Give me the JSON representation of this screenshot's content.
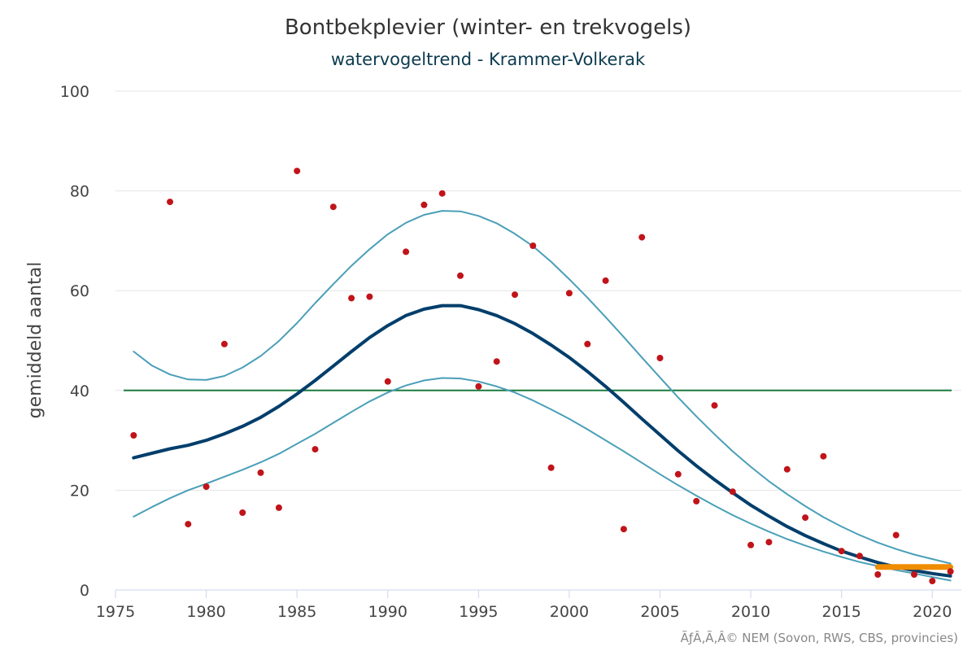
{
  "chart_data": {
    "type": "line",
    "title": "Bontbekplevier (winter- en trekvogels)",
    "subtitle": "watervogeltrend - Krammer-Volkerak",
    "ylabel": "gemiddeld aantal",
    "xlabel": "",
    "xlim": [
      1975,
      2021.6
    ],
    "ylim": [
      0,
      100
    ],
    "x_ticks": [
      1975,
      1980,
      1985,
      1990,
      1995,
      2000,
      2005,
      2010,
      2015,
      2020
    ],
    "y_ticks": [
      0,
      20,
      40,
      60,
      80,
      100
    ],
    "grid": "horizontal",
    "colors": {
      "trend": "#003e6b",
      "band": "#4a9fb8",
      "points": "#c0141a",
      "reference": "#1a7a3c",
      "recent": "#f08c00"
    },
    "reference_line": {
      "y": 40
    },
    "points": {
      "x": [
        1976,
        1978,
        1979,
        1980,
        1981,
        1982,
        1983,
        1984,
        1985,
        1986,
        1987,
        1988,
        1989,
        1990,
        1991,
        1992,
        1993,
        1994,
        1995,
        1996,
        1997,
        1998,
        1999,
        2000,
        2001,
        2002,
        2003,
        2004,
        2005,
        2006,
        2007,
        2008,
        2009,
        2010,
        2011,
        2012,
        2013,
        2014,
        2015,
        2016,
        2017,
        2018,
        2019,
        2020,
        2021
      ],
      "y": [
        31,
        77.8,
        13.2,
        20.7,
        49.3,
        15.5,
        23.5,
        16.5,
        84,
        28.2,
        76.8,
        58.5,
        58.8,
        41.8,
        67.8,
        77.2,
        79.5,
        63,
        40.8,
        45.8,
        59.2,
        69,
        24.5,
        59.5,
        49.3,
        62,
        12.2,
        70.7,
        46.5,
        23.2,
        17.8,
        37,
        19.7,
        9,
        9.6,
        24.2,
        14.5,
        26.8,
        7.8,
        6.8,
        3.1,
        11,
        3.1,
        1.8,
        3.7
      ]
    },
    "series": [
      {
        "role": "trend",
        "x": [
          1976,
          1977,
          1978,
          1979,
          1980,
          1981,
          1982,
          1983,
          1984,
          1985,
          1986,
          1987,
          1988,
          1989,
          1990,
          1991,
          1992,
          1993,
          1994,
          1995,
          1996,
          1997,
          1998,
          1999,
          2000,
          2001,
          2002,
          2003,
          2004,
          2005,
          2006,
          2007,
          2008,
          2009,
          2010,
          2011,
          2012,
          2013,
          2014,
          2015,
          2016,
          2017,
          2018,
          2019,
          2020,
          2021
        ],
        "y": [
          26.5,
          27.4,
          28.3,
          29,
          30,
          31.3,
          32.8,
          34.6,
          36.8,
          39.3,
          42,
          44.9,
          47.8,
          50.6,
          53,
          55,
          56.3,
          57,
          57,
          56.2,
          55,
          53.4,
          51.4,
          49.1,
          46.6,
          43.8,
          40.8,
          37.6,
          34.3,
          31.1,
          27.9,
          24.9,
          22.1,
          19.5,
          17,
          14.8,
          12.7,
          10.9,
          9.3,
          7.8,
          6.6,
          5.5,
          4.6,
          3.9,
          3.3,
          2.8
        ]
      },
      {
        "role": "band-upper",
        "x": [
          1976,
          1977,
          1978,
          1979,
          1980,
          1981,
          1982,
          1983,
          1984,
          1985,
          1986,
          1987,
          1988,
          1989,
          1990,
          1991,
          1992,
          1993,
          1994,
          1995,
          1996,
          1997,
          1998,
          1999,
          2000,
          2001,
          2002,
          2003,
          2004,
          2005,
          2006,
          2007,
          2008,
          2009,
          2010,
          2011,
          2012,
          2013,
          2014,
          2015,
          2016,
          2017,
          2018,
          2019,
          2020,
          2021
        ],
        "y": [
          47.8,
          45,
          43.2,
          42.2,
          42.1,
          42.9,
          44.6,
          46.9,
          49.9,
          53.5,
          57.5,
          61.3,
          65,
          68.3,
          71.3,
          73.6,
          75.2,
          76,
          75.9,
          75,
          73.5,
          71.4,
          68.9,
          65.8,
          62.3,
          58.6,
          54.7,
          50.7,
          46.6,
          42.6,
          38.6,
          34.8,
          31.2,
          27.8,
          24.7,
          21.8,
          19.2,
          16.8,
          14.6,
          12.7,
          11,
          9.5,
          8.2,
          7.1,
          6.2,
          5.3
        ]
      },
      {
        "role": "band-lower",
        "x": [
          1976,
          1977,
          1978,
          1979,
          1980,
          1981,
          1982,
          1983,
          1984,
          1985,
          1986,
          1987,
          1988,
          1989,
          1990,
          1991,
          1992,
          1993,
          1994,
          1995,
          1996,
          1997,
          1998,
          1999,
          2000,
          2001,
          2002,
          2003,
          2004,
          2005,
          2006,
          2007,
          2008,
          2009,
          2010,
          2011,
          2012,
          2013,
          2014,
          2015,
          2016,
          2017,
          2018,
          2019,
          2020,
          2021
        ],
        "y": [
          14.7,
          16.6,
          18.4,
          20,
          21.3,
          22.7,
          24.1,
          25.6,
          27.3,
          29.3,
          31.3,
          33.5,
          35.7,
          37.8,
          39.6,
          41,
          42,
          42.5,
          42.4,
          41.8,
          40.8,
          39.6,
          38,
          36.2,
          34.3,
          32.2,
          30,
          27.8,
          25.5,
          23.2,
          21,
          18.9,
          16.9,
          15,
          13.3,
          11.7,
          10.2,
          8.9,
          7.7,
          6.6,
          5.6,
          4.8,
          4,
          3.3,
          2.6,
          1.9
        ]
      },
      {
        "role": "recent-trend",
        "x": [
          2017,
          2021
        ],
        "y": [
          4.6,
          4.6
        ]
      }
    ]
  },
  "credit": "ÃƒÂ‚Ã‚Â© NEM (Sovon, RWS, CBS, provincies)"
}
